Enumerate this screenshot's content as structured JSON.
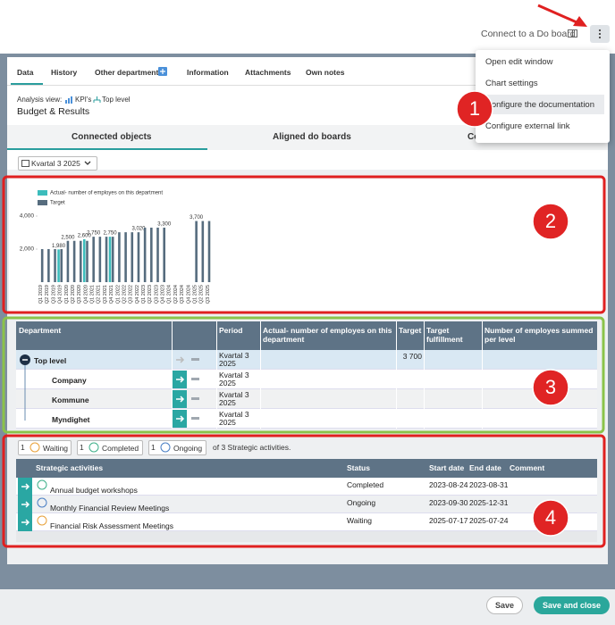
{
  "header": {
    "connect_link": "Connect to a Do board"
  },
  "menu": {
    "items": [
      "Open edit window",
      "Chart settings",
      "Configure the documentation",
      "Configure external link"
    ]
  },
  "tabs": [
    "Data",
    "History",
    "Other departments",
    "Information",
    "Attachments",
    "Own notes"
  ],
  "analysis": {
    "label": "Analysis view:",
    "kpi": "KPI's",
    "level": "Top level",
    "title": "Budget & Results"
  },
  "subtabs": [
    "Connected objects",
    "Aligned do boards",
    "Co"
  ],
  "period_select": "Kvartal 3 2025",
  "chart_data": {
    "type": "bar",
    "categories": [
      "Q1 2019",
      "Q2 2019",
      "Q3 2019",
      "Q4 2019",
      "Q1 2020",
      "Q2 2020",
      "Q3 2020",
      "Q4 2020",
      "Q1 2021",
      "Q2 2021",
      "Q3 2021",
      "Q4 2021",
      "Q1 2022",
      "Q2 2022",
      "Q3 2022",
      "Q4 2022",
      "Q1 2023",
      "Q2 2023",
      "Q3 2023",
      "Q4 2023",
      "Q1 2024",
      "Q2 2024",
      "Q3 2024",
      "Q4 2024",
      "Q1 2025",
      "Q2 2025",
      "Q3 2025"
    ],
    "series": [
      {
        "name": "Actual- number of employes on this department",
        "color": "#3cbcbc",
        "values": [
          null,
          null,
          null,
          1980,
          null,
          null,
          null,
          2600,
          null,
          null,
          null,
          2750,
          null,
          null,
          null,
          null,
          null,
          null,
          null,
          null,
          null,
          null,
          null,
          null,
          null,
          null,
          null
        ],
        "value_labels": [
          null,
          null,
          null,
          "1,980",
          null,
          null,
          null,
          "2,600",
          null,
          null,
          null,
          "2,750",
          null,
          null,
          null,
          null,
          null,
          null,
          null,
          null,
          null,
          null,
          null,
          null,
          null,
          null,
          null
        ]
      },
      {
        "name": "Target",
        "color": "#566c7e",
        "values": [
          2000,
          2000,
          2000,
          2000,
          2500,
          2500,
          2500,
          2500,
          2750,
          2750,
          2750,
          2750,
          3020,
          3020,
          3020,
          3020,
          3300,
          3300,
          3300,
          3300,
          null,
          null,
          null,
          null,
          3700,
          3700,
          3700
        ],
        "value_labels": [
          null,
          null,
          null,
          null,
          "2,500",
          null,
          null,
          null,
          "2,750",
          null,
          null,
          null,
          null,
          null,
          null,
          "3,020",
          null,
          null,
          null,
          "3,300",
          null,
          null,
          null,
          null,
          "3,700",
          null,
          null
        ]
      }
    ],
    "ylim": [
      0,
      4000
    ],
    "yticks": [
      {
        "value": 2000,
        "label": "2,000"
      },
      {
        "value": 4000,
        "label": "4,000"
      }
    ],
    "legend": "top-left"
  },
  "department_table": {
    "columns": [
      "Department",
      "Period",
      "Actual- number of employes on this department",
      "Target",
      "Target fulfillment",
      "Number of employes summed per level"
    ],
    "rows": [
      {
        "department": "Top level",
        "period": "Kvartal 3 2025",
        "target": "3 700"
      },
      {
        "department": "Company",
        "period": "Kvartal 3 2025"
      },
      {
        "department": "Kommune",
        "period": "Kvartal 3 2025"
      },
      {
        "department": "Myndighet",
        "period": "Kvartal 3 2025"
      }
    ]
  },
  "activities": {
    "chips": [
      {
        "count": "1",
        "label": "Waiting"
      },
      {
        "count": "1",
        "label": "Completed"
      },
      {
        "count": "1",
        "label": "Ongoing"
      }
    ],
    "summary": "of 3 Strategic activities.",
    "columns": [
      "Strategic activities",
      "Status",
      "Start date",
      "End date",
      "Comment"
    ],
    "rows": [
      {
        "name": "Annual budget workshops",
        "status": "Completed",
        "start": "2023-08-24",
        "end": "2023-08-31"
      },
      {
        "name": "Monthly Financial Review Meetings",
        "status": "Ongoing",
        "start": "2023-09-30",
        "end": "2025-12-31"
      },
      {
        "name": "Financial Risk Assessment Meetings",
        "status": "Waiting",
        "start": "2025-07-17",
        "end": "2025-07-24"
      }
    ]
  },
  "buttons": [
    "Save",
    "Save and close"
  ],
  "annotations": [
    "1",
    "2",
    "3",
    "4"
  ]
}
